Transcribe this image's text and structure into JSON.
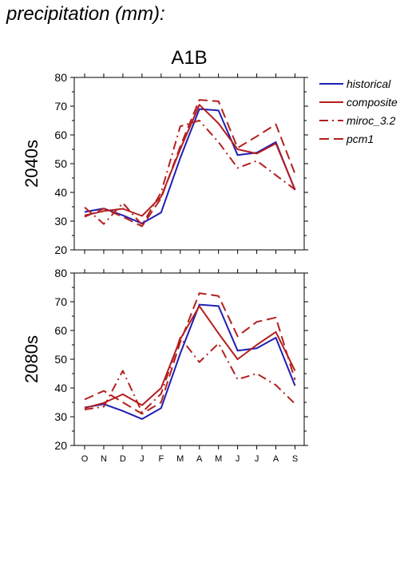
{
  "page": {
    "title": "precipitation (mm):"
  },
  "chart_data": {
    "type": "line",
    "title": "A1B",
    "categories": [
      "O",
      "N",
      "D",
      "J",
      "F",
      "M",
      "A",
      "M",
      "J",
      "J",
      "A",
      "S"
    ],
    "ylim": [
      20,
      80
    ],
    "yticks": [
      20,
      30,
      40,
      50,
      60,
      70,
      80
    ],
    "grid": false,
    "legend": {
      "placement": "right",
      "entries": [
        {
          "name": "historical",
          "color": "#1f1fb4",
          "dash": "solid"
        },
        {
          "name": "composite",
          "color": "#b41f1f",
          "dash": "solid"
        },
        {
          "name": "miroc_3.2",
          "color": "#b41f1f",
          "dash": "dashdot"
        },
        {
          "name": "pcm1",
          "color": "#b41f1f",
          "dash": "dashed"
        }
      ]
    },
    "panels": [
      {
        "ylabel": "2040s",
        "series": [
          {
            "name": "historical",
            "values": [
              33.2,
              34.4,
              32,
              29.2,
              33,
              52,
              69,
              68.5,
              53,
              53.8,
              57.5,
              40.8
            ]
          },
          {
            "name": "composite",
            "values": [
              32,
              33.5,
              34.3,
              31.8,
              38.5,
              55,
              70.5,
              64,
              55,
              53.5,
              57,
              41
            ]
          },
          {
            "name": "miroc_3.2",
            "values": [
              34.8,
              29,
              36.3,
              28.7,
              40,
              63,
              65,
              57.5,
              48.5,
              51,
              46,
              41
            ]
          },
          {
            "name": "pcm1",
            "values": [
              31.5,
              34.4,
              31.5,
              28.2,
              38,
              56,
              72.2,
              71.7,
              55.5,
              59.5,
              63.7,
              46.5
            ]
          }
        ]
      },
      {
        "ylabel": "2080s",
        "series": [
          {
            "name": "historical",
            "values": [
              33.2,
              34.4,
              32,
              29.2,
              33,
              52,
              69,
              68.5,
              53,
              53.8,
              57.5,
              40.8
            ]
          },
          {
            "name": "composite",
            "values": [
              33,
              34.8,
              37.8,
              34,
              40,
              57,
              68.5,
              59,
              50,
              55,
              59.5,
              46
            ]
          },
          {
            "name": "miroc_3.2",
            "values": [
              32.5,
              33.5,
              46,
              31.5,
              38,
              57.5,
              49,
              55.5,
              43,
              45,
              41,
              34.5
            ]
          },
          {
            "name": "pcm1",
            "values": [
              36,
              39,
              35,
              31,
              35,
              56,
              73,
              72,
              58,
              63,
              64.5,
              42.8
            ]
          }
        ]
      }
    ]
  }
}
